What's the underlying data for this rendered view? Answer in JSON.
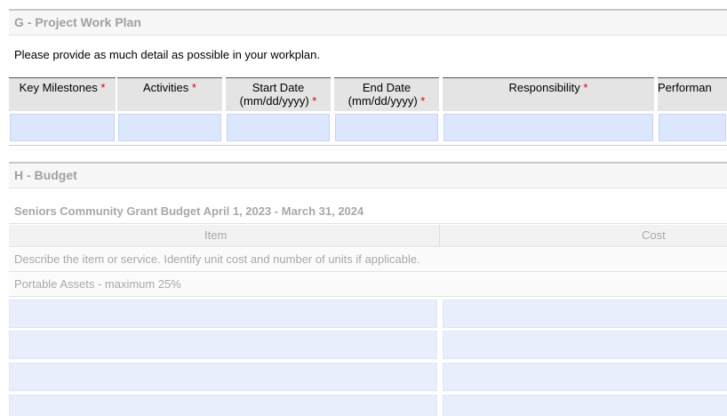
{
  "work_plan": {
    "title": "G - Project Work Plan",
    "instruction": "Please provide as much detail as possible in your workplan.",
    "required_mark": "*",
    "columns": [
      {
        "label": "Key Milestones",
        "required": true
      },
      {
        "label": "Activities",
        "required": true
      },
      {
        "label": "Start Date (mm/dd/yyyy)",
        "required": true
      },
      {
        "label": "End Date (mm/dd/yyyy)",
        "required": true
      },
      {
        "label": "Responsibility",
        "required": true
      },
      {
        "label": "Performan",
        "required": false
      }
    ]
  },
  "budget": {
    "title": "H - Budget",
    "subtitle": "Seniors Community Grant Budget April 1, 2023 - March 31, 2024",
    "columns": [
      "Item",
      "Cost"
    ],
    "description": "Describe the item or service. Identify unit cost and number of units if applicable.",
    "category": "Portable Assets - maximum 25%"
  }
}
